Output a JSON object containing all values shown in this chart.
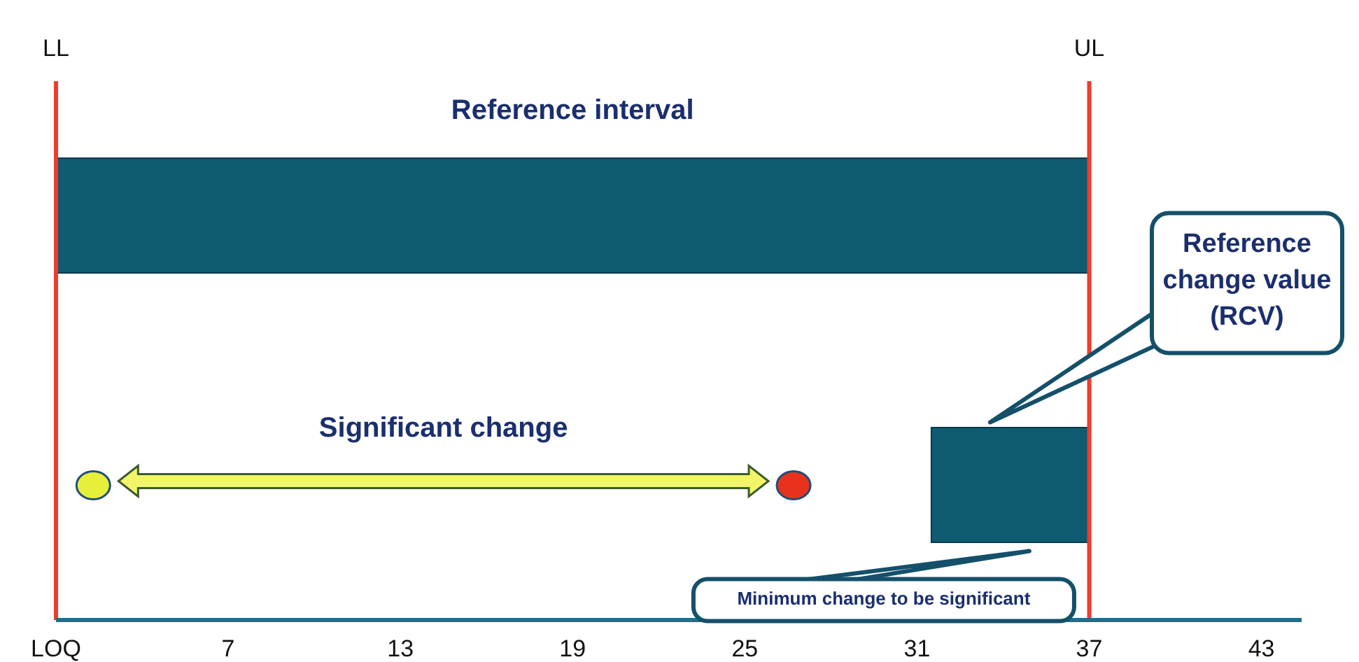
{
  "chart_data": {
    "type": "bar",
    "orientation": "horizontal",
    "categories": [
      null,
      null
    ],
    "series": [
      {
        "type": "bar",
        "color": "#0f5b72",
        "base": [
          1,
          31.5
        ],
        "values": [
          36,
          5.5
        ]
      },
      {
        "type": "scatter",
        "color": "#e6f03a",
        "values": [
          null,
          2.3
        ]
      },
      {
        "type": "scatter",
        "color": "#e8321e",
        "values": [
          null,
          26.7
        ]
      }
    ],
    "xlim": [
      1,
      44.4
    ],
    "xticks": [
      {
        "value": 1,
        "label": "LOQ"
      },
      7,
      13,
      19,
      25,
      31,
      37,
      43
    ],
    "ref_lines": [
      {
        "axis": "x",
        "value": 1,
        "label": "LL",
        "color": "#f03c2a"
      },
      {
        "axis": "x",
        "value": 37,
        "label": "UL",
        "color": "#f03c2a"
      }
    ],
    "annotations": [
      "Reference interval",
      "Significant change",
      "Reference change value (RCV)",
      "Minimum change to be significant"
    ],
    "grid": false,
    "legend": false,
    "marker": "circle"
  }
}
